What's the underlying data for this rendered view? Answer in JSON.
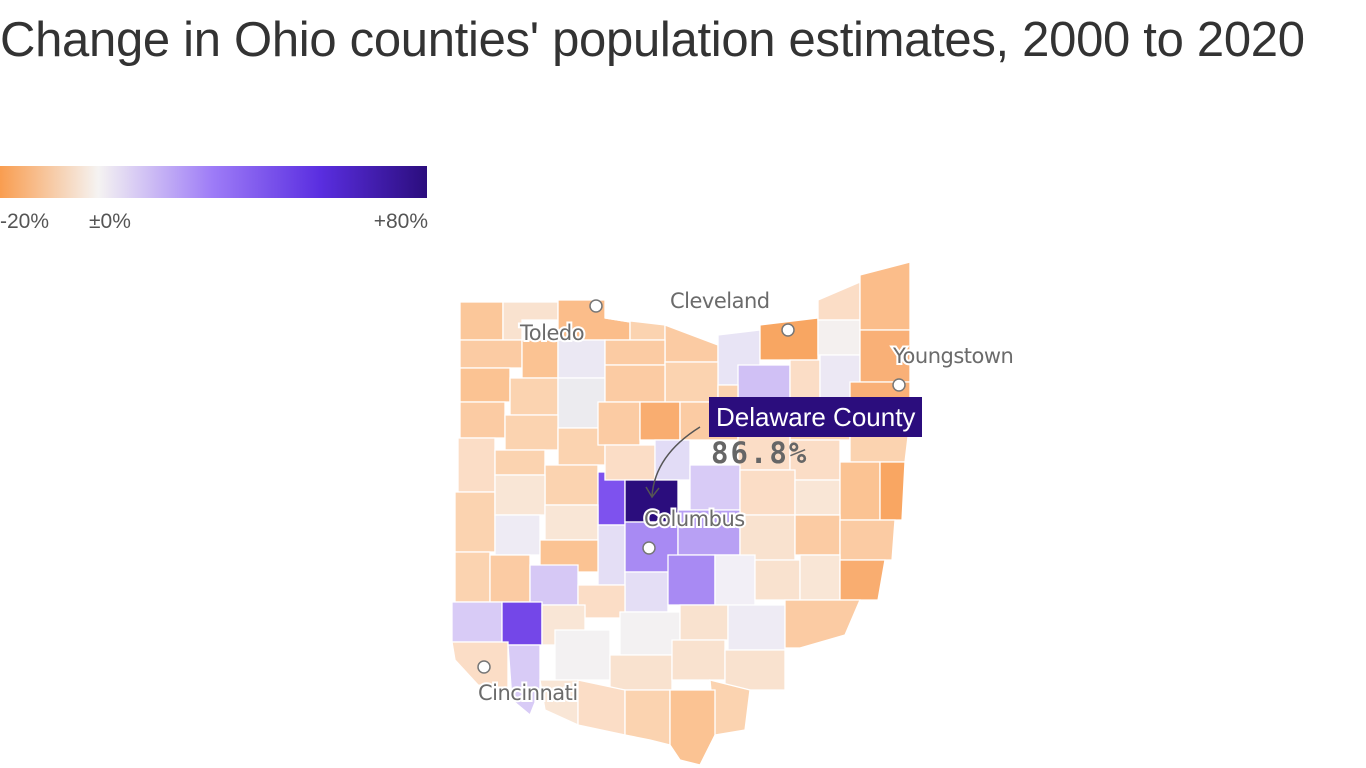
{
  "title": "Change in Ohio counties' population estimates, 2000 to 2020",
  "legend": {
    "min_label": "-20%",
    "mid_label": "±0%",
    "max_label": "+80%",
    "min_value": -20,
    "max_value": 80,
    "colors": {
      "low": "#f99d50",
      "neutral": "#f5f3f2",
      "mid_high": "#9d7bf7",
      "high_mid": "#5a2ee0",
      "high": "#2b0d7d"
    }
  },
  "cities": [
    {
      "name": "Cleveland"
    },
    {
      "name": "Toledo"
    },
    {
      "name": "Youngstown"
    },
    {
      "name": "Columbus"
    },
    {
      "name": "Cincinnati"
    }
  ],
  "callout": {
    "county": "Delaware County",
    "value": "86.8%"
  }
}
